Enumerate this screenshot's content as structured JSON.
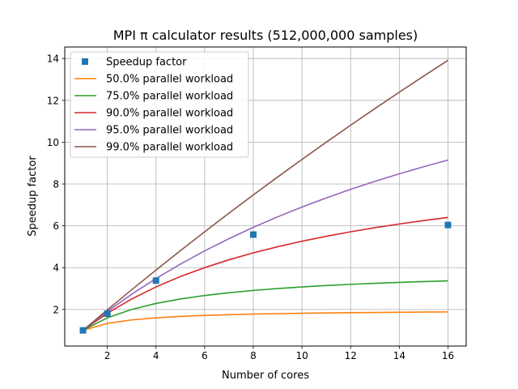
{
  "chart_data": {
    "type": "line",
    "title": "MPI π calculator results (512,000,000 samples)",
    "xlabel": "Number of cores",
    "ylabel": "Speedup factor",
    "xlim": [
      0.25,
      16.75
    ],
    "ylim": [
      0.25,
      14.55
    ],
    "xticks": [
      2,
      4,
      6,
      8,
      10,
      12,
      14,
      16
    ],
    "yticks": [
      2,
      4,
      6,
      8,
      10,
      12,
      14
    ],
    "grid": true,
    "legend_position": "top-left",
    "measured": {
      "name": "Speedup factor",
      "color": "#1f77b4",
      "marker": "square",
      "points": [
        {
          "x": 1,
          "y": 1.0
        },
        {
          "x": 2,
          "y": 1.8
        },
        {
          "x": 4,
          "y": 3.38
        },
        {
          "x": 8,
          "y": 5.58
        },
        {
          "x": 16,
          "y": 6.04
        }
      ]
    },
    "series": [
      {
        "name": "50.0% parallel workload",
        "parallel_fraction": 0.5,
        "color": "#ff7f0e"
      },
      {
        "name": "75.0% parallel workload",
        "parallel_fraction": 0.75,
        "color": "#2ca02c"
      },
      {
        "name": "90.0% parallel workload",
        "parallel_fraction": 0.9,
        "color": "#d62728"
      },
      {
        "name": "95.0% parallel workload",
        "parallel_fraction": 0.95,
        "color": "#9467bd"
      },
      {
        "name": "99.0% parallel workload",
        "parallel_fraction": 0.99,
        "color": "#8c564b"
      }
    ]
  }
}
